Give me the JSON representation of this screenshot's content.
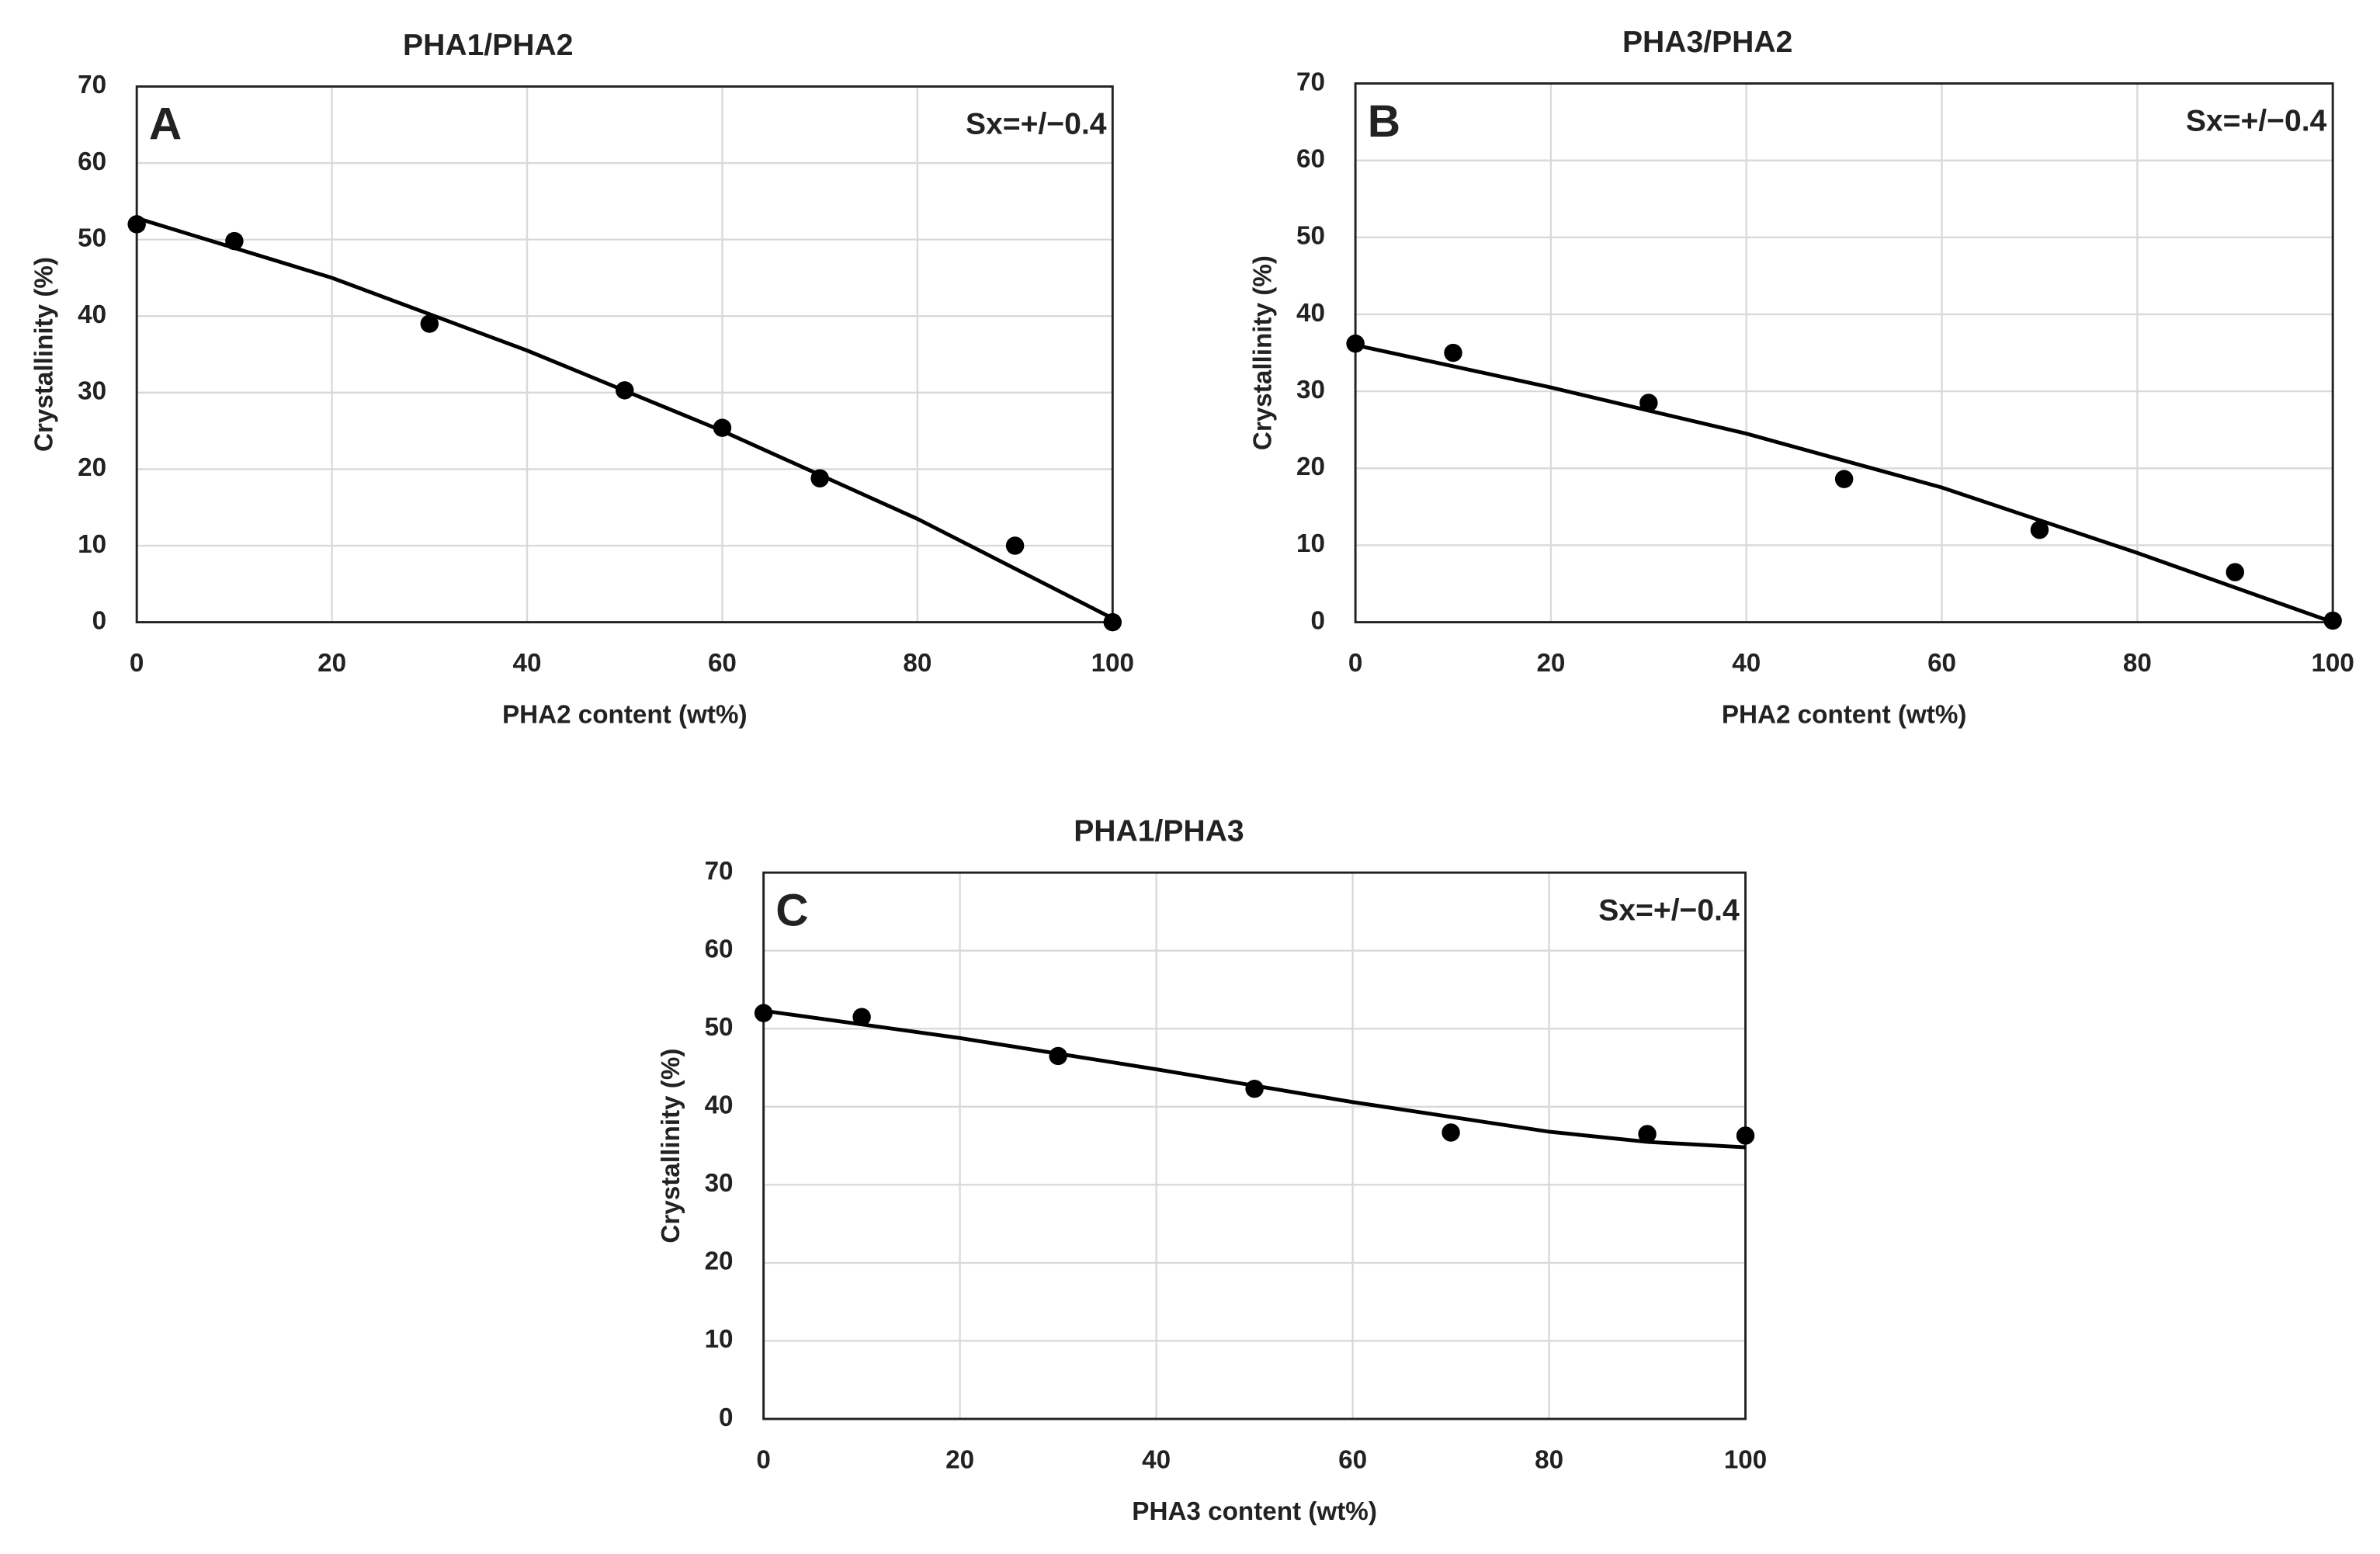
{
  "chart_data": [
    {
      "type": "scatter",
      "title": "PHA1/PHA2",
      "panel": "A",
      "annotation": "Sx=+/−0.4",
      "x_label": "PHA2 content (wt%)",
      "y_label": "Crystallinity (%)",
      "x": [
        0,
        10,
        30,
        50,
        60,
        70,
        90,
        100
      ],
      "values": [
        52,
        49.8,
        39,
        30.3,
        25.4,
        18.8,
        10,
        0
      ],
      "fit_x": [
        0,
        20,
        40,
        60,
        80,
        90,
        100
      ],
      "fit_values": [
        52.8,
        45,
        35.5,
        25,
        13.5,
        7,
        0.5
      ],
      "color": "#000000",
      "xlim": [
        0,
        100
      ],
      "ylim": [
        0,
        70
      ],
      "xticks": [
        0,
        20,
        40,
        60,
        80,
        100
      ],
      "yticks": [
        0,
        10,
        20,
        30,
        40,
        50,
        60,
        70
      ],
      "grid": true
    },
    {
      "type": "scatter",
      "title": "PHA3/PHA2",
      "panel": "B",
      "annotation": "Sx=+/−0.4",
      "x_label": "PHA2 content (wt%)",
      "y_label": "Crystallinity (%)",
      "x": [
        0,
        10,
        30,
        50,
        70,
        90,
        100
      ],
      "values": [
        36.2,
        35,
        28.5,
        18.6,
        12,
        6.5,
        0.2
      ],
      "fit_x": [
        0,
        20,
        40,
        60,
        80,
        100
      ],
      "fit_values": [
        36,
        30.5,
        24.5,
        17.5,
        9,
        0
      ],
      "color": "#000000",
      "xlim": [
        0,
        100
      ],
      "ylim": [
        0,
        70
      ],
      "xticks": [
        0,
        20,
        40,
        60,
        80,
        100
      ],
      "yticks": [
        0,
        10,
        20,
        30,
        40,
        50,
        60,
        70
      ],
      "grid": true
    },
    {
      "type": "scatter",
      "title": "PHA1/PHA3",
      "panel": "C",
      "annotation": "Sx=+/−0.4",
      "x_label": "PHA3 content (wt%)",
      "y_label": "Crystallinity (%)",
      "x": [
        0,
        10,
        30,
        50,
        70,
        90,
        100
      ],
      "values": [
        52,
        51.5,
        46.5,
        42.3,
        36.7,
        36.5,
        36.3
      ],
      "fit_x": [
        0,
        20,
        40,
        60,
        80,
        90,
        100
      ],
      "fit_values": [
        52.3,
        48.8,
        44.8,
        40.6,
        36.8,
        35.5,
        34.8
      ],
      "color": "#000000",
      "xlim": [
        0,
        100
      ],
      "ylim": [
        0,
        70
      ],
      "xticks": [
        0,
        20,
        40,
        60,
        80,
        100
      ],
      "yticks": [
        0,
        10,
        20,
        30,
        40,
        50,
        60,
        70
      ],
      "grid": true
    }
  ]
}
